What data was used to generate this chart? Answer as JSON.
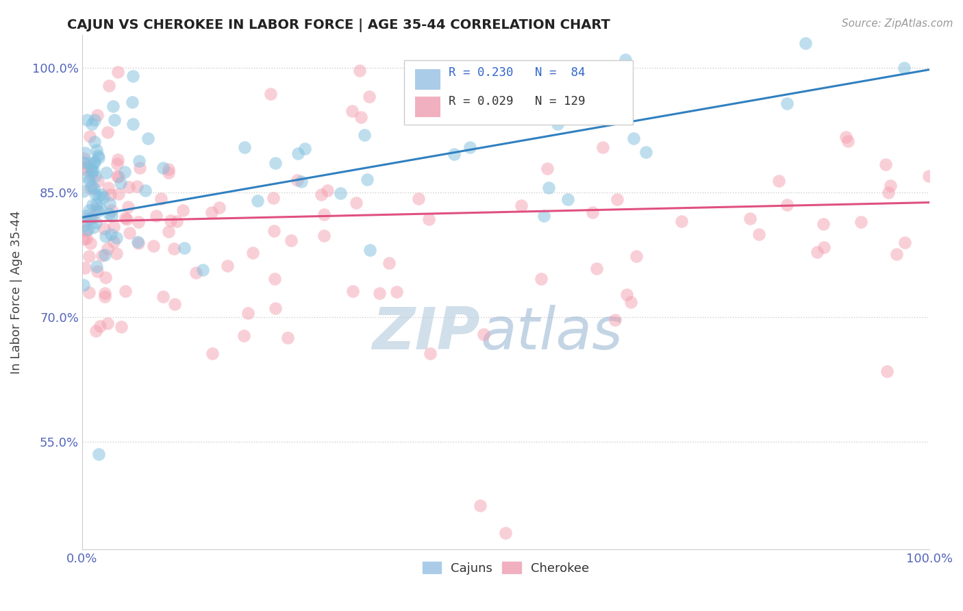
{
  "title": "CAJUN VS CHEROKEE IN LABOR FORCE | AGE 35-44 CORRELATION CHART",
  "source_text": "Source: ZipAtlas.com",
  "ylabel": "In Labor Force | Age 35-44",
  "xlim": [
    0.0,
    1.0
  ],
  "ylim": [
    0.42,
    1.04
  ],
  "yticks": [
    0.55,
    0.7,
    0.85,
    1.0
  ],
  "ytick_labels": [
    "55.0%",
    "70.0%",
    "85.0%",
    "100.0%"
  ],
  "xticks": [
    0.0,
    1.0
  ],
  "xtick_labels": [
    "0.0%",
    "100.0%"
  ],
  "cajun_R": 0.23,
  "cajun_N": 84,
  "cherokee_R": 0.029,
  "cherokee_N": 129,
  "cajun_color": "#7fbfdf",
  "cherokee_color": "#f4a0b0",
  "cajun_line_color": "#3080c0",
  "cherokee_line_color": "#e05080",
  "tick_color": "#5566bb",
  "watermark_color": "#c5d8ea",
  "background_color": "#ffffff",
  "grid_color": "#cccccc",
  "legend_box_color": "#eeeeee",
  "legend_R_color": "#3366cc",
  "legend_border_color": "#cccccc"
}
